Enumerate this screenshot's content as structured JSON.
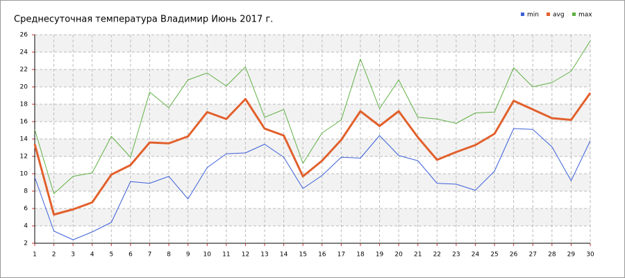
{
  "chart_data": {
    "type": "line",
    "title": "Среднесуточная температура Владимир  Июнь 2017 г.",
    "x": [
      1,
      2,
      3,
      4,
      5,
      6,
      7,
      8,
      9,
      10,
      11,
      12,
      13,
      14,
      15,
      16,
      17,
      18,
      19,
      20,
      21,
      22,
      23,
      24,
      25,
      26,
      27,
      28,
      29,
      30
    ],
    "series": [
      {
        "name": "min",
        "color": "#3b5fd9",
        "width": 1,
        "values": [
          9.6,
          3.4,
          2.4,
          3.3,
          4.4,
          9.1,
          8.9,
          9.7,
          7.1,
          10.7,
          12.3,
          12.4,
          13.4,
          11.9,
          8.3,
          9.8,
          11.9,
          11.8,
          14.4,
          12.1,
          11.5,
          8.9,
          8.8,
          8.1,
          10.3,
          15.2,
          15.1,
          13.1,
          9.2,
          13.8
        ]
      },
      {
        "name": "avg",
        "color": "#e2602c",
        "width": 3,
        "values": [
          13.4,
          5.3,
          5.9,
          6.7,
          9.9,
          11.0,
          13.6,
          13.5,
          14.3,
          17.1,
          16.3,
          18.6,
          15.2,
          14.4,
          9.7,
          11.5,
          13.9,
          17.2,
          15.5,
          17.2,
          14.2,
          11.6,
          12.5,
          13.3,
          14.6,
          18.4,
          17.4,
          16.4,
          16.2,
          19.3
        ]
      },
      {
        "name": "max",
        "color": "#5fb043",
        "width": 1,
        "values": [
          15.1,
          7.7,
          9.7,
          10.1,
          14.3,
          11.9,
          19.4,
          17.6,
          20.8,
          21.6,
          20.1,
          22.3,
          16.5,
          17.4,
          11.2,
          14.7,
          16.2,
          23.2,
          17.5,
          20.8,
          16.5,
          16.3,
          15.8,
          17.0,
          17.1,
          22.2,
          20.0,
          20.5,
          21.8,
          25.3
        ]
      }
    ],
    "xlim": [
      1,
      30
    ],
    "xticks": [
      1,
      2,
      3,
      4,
      5,
      6,
      7,
      8,
      9,
      10,
      11,
      12,
      13,
      14,
      15,
      16,
      17,
      18,
      19,
      20,
      21,
      22,
      23,
      24,
      25,
      26,
      27,
      28,
      29,
      30
    ],
    "ylim": [
      2,
      26
    ],
    "yticks": [
      2,
      4,
      6,
      8,
      10,
      12,
      14,
      16,
      18,
      20,
      22,
      24,
      26
    ],
    "grid": true,
    "legend": "top-right"
  }
}
